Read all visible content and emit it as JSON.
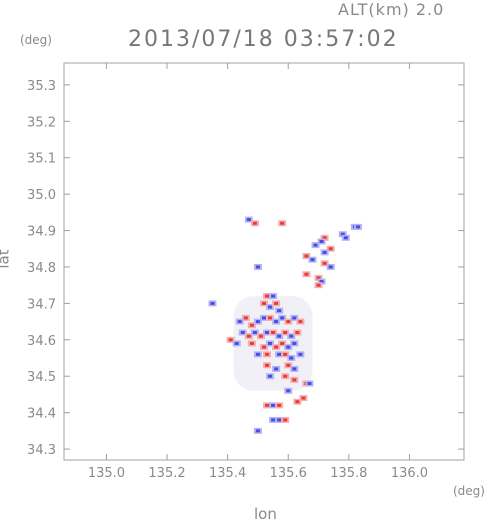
{
  "header": {
    "alt_label": "ALT(km) 2.0",
    "datetime": "2013/07/18 03:57:02",
    "y_unit": "(deg)",
    "x_unit": "(deg)"
  },
  "chart_data": {
    "type": "scatter",
    "title": "2013/07/18 03:57:02",
    "xlabel": "lon",
    "ylabel": "lat",
    "xlim": [
      134.86,
      136.18
    ],
    "ylim": [
      34.27,
      35.36
    ],
    "x_ticks": [
      "135.0",
      "135.2",
      "135.4",
      "135.6",
      "135.8",
      "136.0"
    ],
    "y_ticks": [
      "34.3",
      "34.4",
      "34.5",
      "34.6",
      "34.7",
      "34.8",
      "34.9",
      "35.0",
      "35.1",
      "35.2",
      "35.3"
    ],
    "grid": false,
    "colors": {
      "positive": "#e83a3a",
      "negative": "#4a4ae8",
      "pos_light": "#f2b0b0",
      "neg_light": "#b4b4f4"
    },
    "points": [
      {
        "x": 135.47,
        "y": 34.93,
        "v": -1
      },
      {
        "x": 135.49,
        "y": 34.92,
        "v": 1
      },
      {
        "x": 135.58,
        "y": 34.92,
        "v": 1
      },
      {
        "x": 135.82,
        "y": 34.91,
        "v": -1
      },
      {
        "x": 135.83,
        "y": 34.91,
        "v": -1
      },
      {
        "x": 135.78,
        "y": 34.89,
        "v": -1
      },
      {
        "x": 135.79,
        "y": 34.88,
        "v": -1
      },
      {
        "x": 135.72,
        "y": 34.88,
        "v": 1
      },
      {
        "x": 135.71,
        "y": 34.87,
        "v": -1
      },
      {
        "x": 135.69,
        "y": 34.86,
        "v": -1
      },
      {
        "x": 135.74,
        "y": 34.85,
        "v": 1
      },
      {
        "x": 135.72,
        "y": 34.84,
        "v": -1
      },
      {
        "x": 135.66,
        "y": 34.83,
        "v": 1
      },
      {
        "x": 135.68,
        "y": 34.82,
        "v": -1
      },
      {
        "x": 135.72,
        "y": 34.81,
        "v": 1
      },
      {
        "x": 135.74,
        "y": 34.8,
        "v": -1
      },
      {
        "x": 135.66,
        "y": 34.78,
        "v": 1
      },
      {
        "x": 135.7,
        "y": 34.77,
        "v": 1
      },
      {
        "x": 135.71,
        "y": 34.76,
        "v": -1
      },
      {
        "x": 135.7,
        "y": 34.75,
        "v": 1
      },
      {
        "x": 135.5,
        "y": 34.8,
        "v": -1
      },
      {
        "x": 135.53,
        "y": 34.72,
        "v": 1
      },
      {
        "x": 135.55,
        "y": 34.72,
        "v": -1
      },
      {
        "x": 135.52,
        "y": 34.7,
        "v": 1
      },
      {
        "x": 135.54,
        "y": 34.69,
        "v": -1
      },
      {
        "x": 135.56,
        "y": 34.7,
        "v": 1
      },
      {
        "x": 135.57,
        "y": 34.68,
        "v": -1
      },
      {
        "x": 135.46,
        "y": 34.66,
        "v": 1
      },
      {
        "x": 135.44,
        "y": 34.65,
        "v": -1
      },
      {
        "x": 135.48,
        "y": 34.64,
        "v": 1
      },
      {
        "x": 135.5,
        "y": 34.65,
        "v": -1
      },
      {
        "x": 135.52,
        "y": 34.66,
        "v": -1
      },
      {
        "x": 135.54,
        "y": 34.66,
        "v": 1
      },
      {
        "x": 135.56,
        "y": 34.65,
        "v": -1
      },
      {
        "x": 135.58,
        "y": 34.66,
        "v": -1
      },
      {
        "x": 135.6,
        "y": 34.65,
        "v": 1
      },
      {
        "x": 135.62,
        "y": 34.66,
        "v": -1
      },
      {
        "x": 135.64,
        "y": 34.65,
        "v": 1
      },
      {
        "x": 135.45,
        "y": 34.62,
        "v": -1
      },
      {
        "x": 135.47,
        "y": 34.61,
        "v": 1
      },
      {
        "x": 135.49,
        "y": 34.62,
        "v": -1
      },
      {
        "x": 135.51,
        "y": 34.61,
        "v": 1
      },
      {
        "x": 135.53,
        "y": 34.62,
        "v": -1
      },
      {
        "x": 135.55,
        "y": 34.62,
        "v": 1
      },
      {
        "x": 135.57,
        "y": 34.61,
        "v": -1
      },
      {
        "x": 135.59,
        "y": 34.62,
        "v": 1
      },
      {
        "x": 135.61,
        "y": 34.61,
        "v": -1
      },
      {
        "x": 135.63,
        "y": 34.62,
        "v": 1
      },
      {
        "x": 135.41,
        "y": 34.6,
        "v": 1
      },
      {
        "x": 135.43,
        "y": 34.59,
        "v": -1
      },
      {
        "x": 135.48,
        "y": 34.59,
        "v": 1
      },
      {
        "x": 135.52,
        "y": 34.58,
        "v": 1
      },
      {
        "x": 135.54,
        "y": 34.59,
        "v": -1
      },
      {
        "x": 135.56,
        "y": 34.58,
        "v": 1
      },
      {
        "x": 135.58,
        "y": 34.59,
        "v": 1
      },
      {
        "x": 135.6,
        "y": 34.58,
        "v": -1
      },
      {
        "x": 135.62,
        "y": 34.59,
        "v": -1
      },
      {
        "x": 135.5,
        "y": 34.56,
        "v": -1
      },
      {
        "x": 135.53,
        "y": 34.56,
        "v": 1
      },
      {
        "x": 135.57,
        "y": 34.56,
        "v": -1
      },
      {
        "x": 135.59,
        "y": 34.56,
        "v": 1
      },
      {
        "x": 135.61,
        "y": 34.55,
        "v": -1
      },
      {
        "x": 135.64,
        "y": 34.56,
        "v": -1
      },
      {
        "x": 135.53,
        "y": 34.53,
        "v": 1
      },
      {
        "x": 135.56,
        "y": 34.52,
        "v": -1
      },
      {
        "x": 135.6,
        "y": 34.53,
        "v": 1
      },
      {
        "x": 135.62,
        "y": 34.52,
        "v": -1
      },
      {
        "x": 135.54,
        "y": 34.5,
        "v": -1
      },
      {
        "x": 135.59,
        "y": 34.5,
        "v": 1
      },
      {
        "x": 135.62,
        "y": 34.49,
        "v": 1
      },
      {
        "x": 135.66,
        "y": 34.48,
        "v": 1
      },
      {
        "x": 135.67,
        "y": 34.48,
        "v": -1
      },
      {
        "x": 135.6,
        "y": 34.46,
        "v": -1
      },
      {
        "x": 135.65,
        "y": 34.44,
        "v": 1
      },
      {
        "x": 135.53,
        "y": 34.42,
        "v": 1
      },
      {
        "x": 135.55,
        "y": 34.42,
        "v": -1
      },
      {
        "x": 135.57,
        "y": 34.42,
        "v": 1
      },
      {
        "x": 135.63,
        "y": 34.43,
        "v": 1
      },
      {
        "x": 135.55,
        "y": 34.38,
        "v": -1
      },
      {
        "x": 135.57,
        "y": 34.38,
        "v": -1
      },
      {
        "x": 135.59,
        "y": 34.38,
        "v": 1
      },
      {
        "x": 135.5,
        "y": 34.35,
        "v": -1
      },
      {
        "x": 135.35,
        "y": 34.7,
        "v": -1
      }
    ],
    "faint_region": {
      "x": [
        135.42,
        135.68
      ],
      "y": [
        34.46,
        34.72
      ]
    }
  }
}
